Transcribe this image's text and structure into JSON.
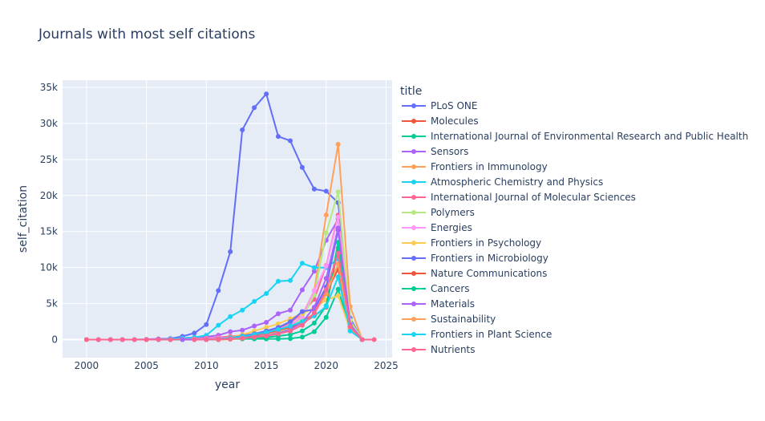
{
  "chart_data": {
    "type": "line",
    "title": "Journals with most self citations",
    "xlabel": "year",
    "ylabel": "self_citation",
    "legend_title": "title",
    "legend_position": "right",
    "grid": true,
    "xlim": [
      1998,
      2025.5
    ],
    "ylim": [
      -2500,
      36000
    ],
    "xticks": [
      2000,
      2005,
      2010,
      2015,
      2020,
      2025
    ],
    "xtick_labels": [
      "2000",
      "2005",
      "2010",
      "2015",
      "2020",
      "2025"
    ],
    "yticks": [
      0,
      5000,
      10000,
      15000,
      20000,
      25000,
      30000,
      35000
    ],
    "ytick_labels": [
      "0",
      "5k",
      "10k",
      "15k",
      "20k",
      "25k",
      "30k",
      "35k"
    ],
    "series": [
      {
        "name": "PLoS ONE",
        "color": "#636efa",
        "x": [
          2006,
          2007,
          2008,
          2009,
          2010,
          2011,
          2012,
          2013,
          2014,
          2015,
          2016,
          2017,
          2018,
          2019,
          2020,
          2021,
          2022,
          2023
        ],
        "y": [
          50,
          150,
          450,
          900,
          2100,
          6800,
          12200,
          29100,
          32200,
          34100,
          28200,
          27600,
          23900,
          20900,
          20600,
          19000,
          3000,
          0
        ]
      },
      {
        "name": "Molecules",
        "color": "#ef553b",
        "x": [
          2000,
          2001,
          2002,
          2003,
          2004,
          2005,
          2006,
          2007,
          2008,
          2009,
          2010,
          2011,
          2012,
          2013,
          2014,
          2015,
          2016,
          2017,
          2018,
          2019,
          2020,
          2021,
          2022,
          2023
        ],
        "y": [
          0,
          0,
          0,
          0,
          0,
          0,
          0,
          0,
          50,
          100,
          150,
          250,
          350,
          500,
          700,
          900,
          1200,
          1700,
          2500,
          3600,
          6500,
          9800,
          2200,
          0
        ]
      },
      {
        "name": "International Journal of Environmental Research and Public Health",
        "color": "#00cc96",
        "x": [
          2005,
          2006,
          2007,
          2008,
          2009,
          2010,
          2011,
          2012,
          2013,
          2014,
          2015,
          2016,
          2017,
          2018,
          2019,
          2020,
          2021,
          2022,
          2023
        ],
        "y": [
          0,
          0,
          0,
          0,
          0,
          50,
          100,
          100,
          100,
          100,
          100,
          100,
          150,
          350,
          1100,
          3100,
          7000,
          1500,
          0
        ]
      },
      {
        "name": "Sensors",
        "color": "#ab63fa",
        "x": [
          2001,
          2002,
          2003,
          2004,
          2005,
          2006,
          2007,
          2008,
          2009,
          2010,
          2011,
          2012,
          2013,
          2014,
          2015,
          2016,
          2017,
          2018,
          2019,
          2020,
          2021,
          2022,
          2023
        ],
        "y": [
          0,
          0,
          0,
          0,
          50,
          100,
          150,
          200,
          300,
          400,
          600,
          1100,
          1300,
          1900,
          2400,
          3600,
          4100,
          6900,
          9500,
          13800,
          16700,
          2100,
          0
        ]
      },
      {
        "name": "Frontiers in Immunology",
        "color": "#ffa15a",
        "x": [
          2010,
          2011,
          2012,
          2013,
          2014,
          2015,
          2016,
          2017,
          2018,
          2019,
          2020,
          2021,
          2022,
          2023
        ],
        "y": [
          0,
          0,
          50,
          150,
          300,
          600,
          1000,
          1800,
          3400,
          6800,
          17300,
          27100,
          4600,
          0
        ]
      },
      {
        "name": "Atmospheric Chemistry and Physics",
        "color": "#19d3f3",
        "x": [
          2001,
          2002,
          2003,
          2004,
          2005,
          2006,
          2007,
          2008,
          2009,
          2010,
          2011,
          2012,
          2013,
          2014,
          2015,
          2016,
          2017,
          2018,
          2019,
          2020,
          2021,
          2022,
          2023
        ],
        "y": [
          0,
          0,
          0,
          0,
          0,
          0,
          100,
          200,
          300,
          600,
          2000,
          3200,
          4100,
          5300,
          6400,
          8100,
          8200,
          10600,
          10000,
          10000,
          11200,
          1700,
          0
        ]
      },
      {
        "name": "International Journal of Molecular Sciences",
        "color": "#ff6692",
        "x": [
          2000,
          2001,
          2002,
          2003,
          2004,
          2005,
          2006,
          2007,
          2008,
          2009,
          2010,
          2011,
          2012,
          2013,
          2014,
          2015,
          2016,
          2017,
          2018,
          2019,
          2020,
          2021,
          2022,
          2023
        ],
        "y": [
          0,
          0,
          0,
          0,
          0,
          0,
          0,
          0,
          50,
          100,
          200,
          300,
          450,
          600,
          800,
          1100,
          1600,
          2300,
          3700,
          5600,
          10300,
          17300,
          2300,
          0
        ]
      },
      {
        "name": "Polymers",
        "color": "#b6e880",
        "x": [
          2009,
          2010,
          2011,
          2012,
          2013,
          2014,
          2015,
          2016,
          2017,
          2018,
          2019,
          2020,
          2021,
          2022,
          2023
        ],
        "y": [
          0,
          50,
          100,
          150,
          250,
          400,
          600,
          1000,
          1600,
          3000,
          6200,
          14800,
          20500,
          2700,
          0
        ]
      },
      {
        "name": "Energies",
        "color": "#ff97ff",
        "x": [
          2008,
          2009,
          2010,
          2011,
          2012,
          2013,
          2014,
          2015,
          2016,
          2017,
          2018,
          2019,
          2020,
          2021,
          2022,
          2023
        ],
        "y": [
          0,
          50,
          100,
          200,
          300,
          500,
          700,
          1000,
          1400,
          2000,
          3200,
          6800,
          10200,
          17000,
          2100,
          0
        ]
      },
      {
        "name": "Frontiers in Psychology",
        "color": "#fecb52",
        "x": [
          2010,
          2011,
          2012,
          2013,
          2014,
          2015,
          2016,
          2017,
          2018,
          2019,
          2020,
          2021,
          2022,
          2023
        ],
        "y": [
          0,
          100,
          300,
          700,
          1200,
          1700,
          2200,
          2900,
          3600,
          4400,
          5500,
          6100,
          1300,
          0
        ]
      },
      {
        "name": "Frontiers in Microbiology",
        "color": "#636efa",
        "x": [
          2010,
          2011,
          2012,
          2013,
          2014,
          2015,
          2016,
          2017,
          2018,
          2019,
          2020,
          2021,
          2022,
          2023
        ],
        "y": [
          0,
          100,
          250,
          500,
          800,
          1200,
          1700,
          2500,
          3900,
          4200,
          7300,
          15200,
          2100,
          0
        ]
      },
      {
        "name": "Nature Communications",
        "color": "#ef553b",
        "x": [
          2010,
          2011,
          2012,
          2013,
          2014,
          2015,
          2016,
          2017,
          2018,
          2019,
          2020,
          2021,
          2022,
          2023
        ],
        "y": [
          0,
          0,
          100,
          300,
          600,
          900,
          1300,
          1700,
          2300,
          3300,
          4500,
          12700,
          1800,
          0
        ]
      },
      {
        "name": "Cancers",
        "color": "#00cc96",
        "x": [
          2009,
          2010,
          2011,
          2012,
          2013,
          2014,
          2015,
          2016,
          2017,
          2018,
          2019,
          2020,
          2021,
          2022,
          2023
        ],
        "y": [
          0,
          0,
          50,
          100,
          150,
          200,
          300,
          500,
          700,
          1200,
          2300,
          4700,
          13500,
          1800,
          0
        ]
      },
      {
        "name": "Materials",
        "color": "#ab63fa",
        "x": [
          2008,
          2009,
          2010,
          2011,
          2012,
          2013,
          2014,
          2015,
          2016,
          2017,
          2018,
          2019,
          2020,
          2021,
          2022,
          2023
        ],
        "y": [
          0,
          0,
          50,
          100,
          150,
          250,
          400,
          600,
          900,
          1400,
          2400,
          4500,
          8500,
          15500,
          2100,
          0
        ]
      },
      {
        "name": "Sustainability",
        "color": "#ffa15a",
        "x": [
          2009,
          2010,
          2011,
          2012,
          2013,
          2014,
          2015,
          2016,
          2017,
          2018,
          2019,
          2020,
          2021,
          2022,
          2023
        ],
        "y": [
          0,
          0,
          50,
          100,
          200,
          350,
          550,
          800,
          1200,
          2100,
          3700,
          6300,
          10500,
          1600,
          0
        ]
      },
      {
        "name": "Frontiers in Plant Science",
        "color": "#19d3f3",
        "x": [
          2010,
          2011,
          2012,
          2013,
          2014,
          2015,
          2016,
          2017,
          2018,
          2019,
          2020,
          2021,
          2022,
          2023
        ],
        "y": [
          0,
          50,
          200,
          450,
          700,
          1000,
          1400,
          1900,
          2500,
          3300,
          4600,
          8700,
          1200,
          0
        ]
      },
      {
        "name": "Nutrients",
        "color": "#ff6692",
        "x": [
          2009,
          2010,
          2011,
          2012,
          2013,
          2014,
          2015,
          2016,
          2017,
          2018,
          2019,
          2020,
          2021,
          2022,
          2023,
          2024
        ],
        "y": [
          0,
          0,
          50,
          100,
          200,
          350,
          500,
          800,
          1200,
          2000,
          3700,
          6900,
          12000,
          1800,
          0,
          0
        ]
      }
    ]
  }
}
